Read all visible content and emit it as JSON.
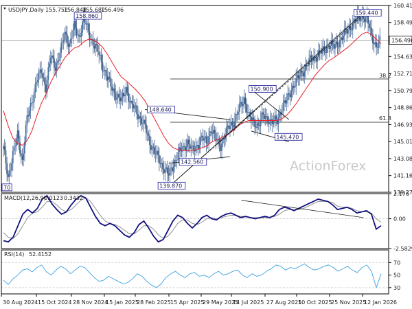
{
  "chart_data": [
    {
      "type": "candlestick",
      "title": "USDJPY,Daily",
      "ohlc_summary": [
        "155.752",
        "156.848",
        "155.682",
        "156.496"
      ],
      "ylim": [
        139.275,
        160.415
      ],
      "y_ticks": [
        "160.415",
        "158.495",
        "156.496",
        "154.635",
        "152.715",
        "150.795",
        "148.860",
        "146.935",
        "145.015",
        "143.085",
        "141.165",
        "139.275"
      ],
      "current_price": "156.496",
      "x_ticks": [
        "30 Aug 2024",
        "15 Oct 2024",
        "28 Nov 2024",
        "15 Jan 2025",
        "28 Feb 2025",
        "15 Apr 2025",
        "29 May 2025",
        "14 Jul 2025",
        "27 Aug 2025",
        "10 Oct 2025",
        "25 Nov 2025",
        "12 Jan 2026"
      ],
      "price_labels": [
        "158.860",
        "148.640",
        "150.900",
        "159.440",
        "145.470",
        "142.560",
        "139.870",
        "70"
      ],
      "fib_labels": [
        "38.2",
        "61.8"
      ],
      "horizontal_levels": [
        156.496,
        152.1,
        147.2
      ],
      "trendlines": [
        {
          "from": [
            "Apr 2025",
            139.87
          ],
          "to": [
            "Jan 2026",
            159.44
          ]
        },
        {
          "from": [
            "Mar 2025",
            148.64
          ],
          "to": [
            "Jun 2025",
            147.5
          ]
        },
        {
          "from": [
            "Apr 2025",
            142.56
          ],
          "to": [
            "Jun 2025",
            143.3
          ]
        },
        {
          "from": [
            "Jul 2025",
            150.9
          ],
          "to": [
            "Sep 2025",
            147.5
          ]
        },
        {
          "from": [
            "Jul 2025",
            146.2
          ],
          "to": [
            "Sep 2025",
            145.0
          ]
        }
      ],
      "series": [
        {
          "values": [
            [
              0,
              144.2
            ],
            [
              4,
              141.0
            ],
            [
              8,
              143.5
            ],
            [
              12,
              145.8
            ],
            [
              16,
              142.8
            ],
            [
              20,
              147.5
            ],
            [
              24,
              149.6
            ],
            [
              28,
              151.8
            ],
            [
              32,
              153.0
            ],
            [
              36,
              151.2
            ],
            [
              40,
              154.6
            ],
            [
              44,
              153.5
            ],
            [
              48,
              155.0
            ],
            [
              52,
              157.2
            ],
            [
              56,
              156.0
            ],
            [
              60,
              158.0
            ],
            [
              64,
              156.8
            ],
            [
              68,
              158.9
            ],
            [
              72,
              157.4
            ],
            [
              76,
              156.2
            ],
            [
              80,
              155.2
            ],
            [
              84,
              153.6
            ],
            [
              88,
              152.2
            ],
            [
              92,
              151.0
            ],
            [
              96,
              150.2
            ],
            [
              100,
              149.6
            ],
            [
              104,
              151.1
            ],
            [
              108,
              149.1
            ],
            [
              112,
              148.7
            ],
            [
              116,
              147.6
            ],
            [
              120,
              146.6
            ],
            [
              124,
              145.0
            ],
            [
              128,
              143.8
            ],
            [
              132,
              142.9
            ],
            [
              136,
              142.0
            ],
            [
              140,
              141.2
            ],
            [
              144,
              142.5
            ],
            [
              148,
              143.6
            ],
            [
              152,
              144.2
            ],
            [
              156,
              145.0
            ],
            [
              160,
              143.9
            ],
            [
              164,
              144.6
            ],
            [
              168,
              145.4
            ],
            [
              172,
              144.9
            ],
            [
              176,
              146.5
            ],
            [
              180,
              145.2
            ],
            [
              184,
              144.6
            ],
            [
              188,
              145.8
            ],
            [
              192,
              146.9
            ],
            [
              196,
              147.4
            ],
            [
              200,
              148.8
            ],
            [
              204,
              149.9
            ],
            [
              208,
              147.8
            ],
            [
              212,
              147.2
            ],
            [
              216,
              146.9
            ],
            [
              220,
              147.9
            ],
            [
              224,
              147.6
            ],
            [
              228,
              147.2
            ],
            [
              232,
              147.4
            ],
            [
              236,
              148.9
            ],
            [
              240,
              149.6
            ],
            [
              244,
              151.0
            ],
            [
              248,
              151.8
            ],
            [
              252,
              152.7
            ],
            [
              256,
              153.4
            ],
            [
              260,
              154.2
            ],
            [
              264,
              154.6
            ],
            [
              268,
              155.0
            ],
            [
              272,
              155.4
            ],
            [
              276,
              156.0
            ],
            [
              280,
              155.7
            ],
            [
              284,
              156.3
            ],
            [
              288,
              157.0
            ],
            [
              292,
              157.7
            ],
            [
              296,
              158.4
            ],
            [
              300,
              158.9
            ],
            [
              304,
              159.3
            ],
            [
              308,
              158.8
            ],
            [
              312,
              157.0
            ],
            [
              316,
              155.8
            ],
            [
              320,
              156.5
            ]
          ]
        },
        {
          "values": [
            [
              0,
              148.5
            ],
            [
              4,
              146.8
            ],
            [
              8,
              145.4
            ],
            [
              12,
              144.8
            ],
            [
              16,
              144.6
            ],
            [
              20,
              145.1
            ],
            [
              24,
              146.2
            ],
            [
              28,
              147.8
            ],
            [
              32,
              149.3
            ],
            [
              36,
              150.4
            ],
            [
              40,
              151.7
            ],
            [
              44,
              152.7
            ],
            [
              48,
              153.6
            ],
            [
              52,
              154.5
            ],
            [
              56,
              155.1
            ],
            [
              60,
              155.6
            ],
            [
              64,
              155.8
            ],
            [
              68,
              156.3
            ],
            [
              72,
              156.6
            ],
            [
              76,
              156.5
            ],
            [
              80,
              156.2
            ],
            [
              84,
              155.7
            ],
            [
              88,
              154.9
            ],
            [
              92,
              154.0
            ],
            [
              96,
              153.1
            ],
            [
              100,
              152.3
            ],
            [
              104,
              151.9
            ],
            [
              108,
              151.4
            ],
            [
              112,
              150.9
            ],
            [
              116,
              150.3
            ],
            [
              120,
              149.6
            ],
            [
              124,
              148.6
            ],
            [
              128,
              147.6
            ],
            [
              132,
              146.6
            ],
            [
              136,
              145.6
            ],
            [
              140,
              144.8
            ],
            [
              144,
              144.3
            ],
            [
              148,
              144.1
            ],
            [
              152,
              144.0
            ],
            [
              156,
              144.0
            ],
            [
              160,
              144.0
            ],
            [
              164,
              144.1
            ],
            [
              168,
              144.3
            ],
            [
              172,
              144.5
            ],
            [
              176,
              144.9
            ],
            [
              180,
              145.2
            ],
            [
              184,
              145.4
            ],
            [
              188,
              145.7
            ],
            [
              192,
              146.0
            ],
            [
              196,
              146.4
            ],
            [
              200,
              146.9
            ],
            [
              204,
              147.2
            ],
            [
              208,
              147.4
            ],
            [
              212,
              147.4
            ],
            [
              216,
              147.4
            ],
            [
              220,
              147.4
            ],
            [
              224,
              147.4
            ],
            [
              228,
              147.4
            ],
            [
              232,
              147.4
            ],
            [
              236,
              147.6
            ],
            [
              240,
              148.0
            ],
            [
              244,
              148.6
            ],
            [
              248,
              149.3
            ],
            [
              252,
              150.1
            ],
            [
              256,
              150.9
            ],
            [
              260,
              151.7
            ],
            [
              264,
              152.5
            ],
            [
              268,
              153.1
            ],
            [
              272,
              153.7
            ],
            [
              276,
              154.2
            ],
            [
              280,
              154.5
            ],
            [
              284,
              154.9
            ],
            [
              288,
              155.3
            ],
            [
              292,
              155.7
            ],
            [
              296,
              156.2
            ],
            [
              300,
              156.7
            ],
            [
              304,
              157.2
            ],
            [
              308,
              157.4
            ],
            [
              312,
              157.1
            ],
            [
              316,
              156.6
            ],
            [
              320,
              156.1
            ]
          ]
        }
      ]
    },
    {
      "type": "line",
      "title": "MACD(12,26,9)",
      "values_label": [
        "0.0123",
        "0.3432"
      ],
      "ylim": [
        -2.5829,
        2.176
      ],
      "y_ticks": [
        "2.176",
        "0.00",
        "-2.5829"
      ],
      "series": [
        {
          "values": [
            -1.9,
            -2.0,
            -1.6,
            -0.6,
            0.4,
            0.8,
            0.5,
            0.9,
            1.7,
            2.0,
            1.3,
            0.8,
            0.4,
            0.6,
            1.2,
            1.7,
            2.0,
            1.8,
            1.0,
            0.2,
            -0.4,
            -0.6,
            -0.4,
            -0.6,
            -1.0,
            -1.4,
            -1.6,
            -1.2,
            -0.5,
            -0.2,
            -0.8,
            -1.5,
            -2.0,
            -1.8,
            -1.0,
            -0.2,
            0.3,
            0.1,
            -0.4,
            -0.8,
            -0.4,
            0.1,
            0.3,
            0.0,
            -0.1,
            0.2,
            0.4,
            0.5,
            0.3,
            0.1,
            0.2,
            0.1,
            0.0,
            0.1,
            0.2,
            0.1,
            0.3,
            0.8,
            1.0,
            0.9,
            0.7,
            0.9,
            1.1,
            1.3,
            1.5,
            1.7,
            1.6,
            1.5,
            1.2,
            0.8,
            0.9,
            1.0,
            0.8,
            0.5,
            0.6,
            0.7,
            0.4,
            -0.9,
            -0.6
          ]
        },
        {
          "values": [
            -1.2,
            -1.6,
            -1.7,
            -1.3,
            -0.6,
            0.1,
            0.5,
            0.6,
            1.0,
            1.5,
            1.5,
            1.2,
            0.8,
            0.6,
            0.8,
            1.2,
            1.6,
            1.8,
            1.5,
            0.9,
            0.3,
            -0.2,
            -0.4,
            -0.5,
            -0.7,
            -1.0,
            -1.3,
            -1.3,
            -1.0,
            -0.6,
            -0.6,
            -0.9,
            -1.4,
            -1.7,
            -1.5,
            -1.0,
            -0.4,
            -0.1,
            -0.1,
            -0.4,
            -0.5,
            -0.3,
            0.0,
            0.1,
            0.0,
            0.1,
            0.2,
            0.3,
            0.3,
            0.2,
            0.2,
            0.1,
            0.1,
            0.1,
            0.1,
            0.1,
            0.2,
            0.4,
            0.7,
            0.8,
            0.8,
            0.8,
            0.9,
            1.1,
            1.3,
            1.5,
            1.5,
            1.5,
            1.4,
            1.1,
            1.0,
            1.0,
            0.9,
            0.7,
            0.6,
            0.6,
            0.5,
            0.0,
            -0.3
          ]
        }
      ],
      "trendline": {
        "from": [
          78,
          1.6
        ],
        "to": [
          118,
          0.1
        ]
      }
    },
    {
      "type": "line",
      "title": "RSI(14)",
      "value_label": "52.4152",
      "ylim": [
        20,
        90
      ],
      "y_ticks": [
        "70",
        "50",
        "30"
      ],
      "levels": [
        70,
        30
      ],
      "series": [
        {
          "values": [
            42,
            35,
            44,
            50,
            58,
            60,
            55,
            62,
            66,
            55,
            50,
            58,
            64,
            60,
            52,
            58,
            64,
            62,
            54,
            46,
            40,
            42,
            48,
            44,
            40,
            36,
            38,
            44,
            52,
            48,
            40,
            34,
            30,
            36,
            46,
            52,
            56,
            50,
            46,
            52,
            54,
            48,
            50,
            46,
            52,
            56,
            50,
            52,
            56,
            58,
            50,
            46,
            52,
            48,
            50,
            56,
            60,
            66,
            64,
            58,
            62,
            60,
            64,
            68,
            62,
            58,
            60,
            64,
            66,
            62,
            56,
            60,
            64,
            58,
            54,
            62,
            66,
            56,
            30,
            52
          ]
        }
      ]
    }
  ],
  "watermark": "ActionForex",
  "colors": {
    "bull_candle": "#4a6fa0",
    "bear_candle": "#3d5a85",
    "ma_line": "#e8202a",
    "trendline": "#1a1a1a",
    "macd_main": "#101080",
    "macd_signal": "#909090",
    "rsi_line": "#3aa0e0",
    "label_border": "#1a1a9a",
    "label_bg": "#ffffff",
    "grid_dash": "#c8c8c8",
    "axis_text": "#1a1a1a"
  }
}
